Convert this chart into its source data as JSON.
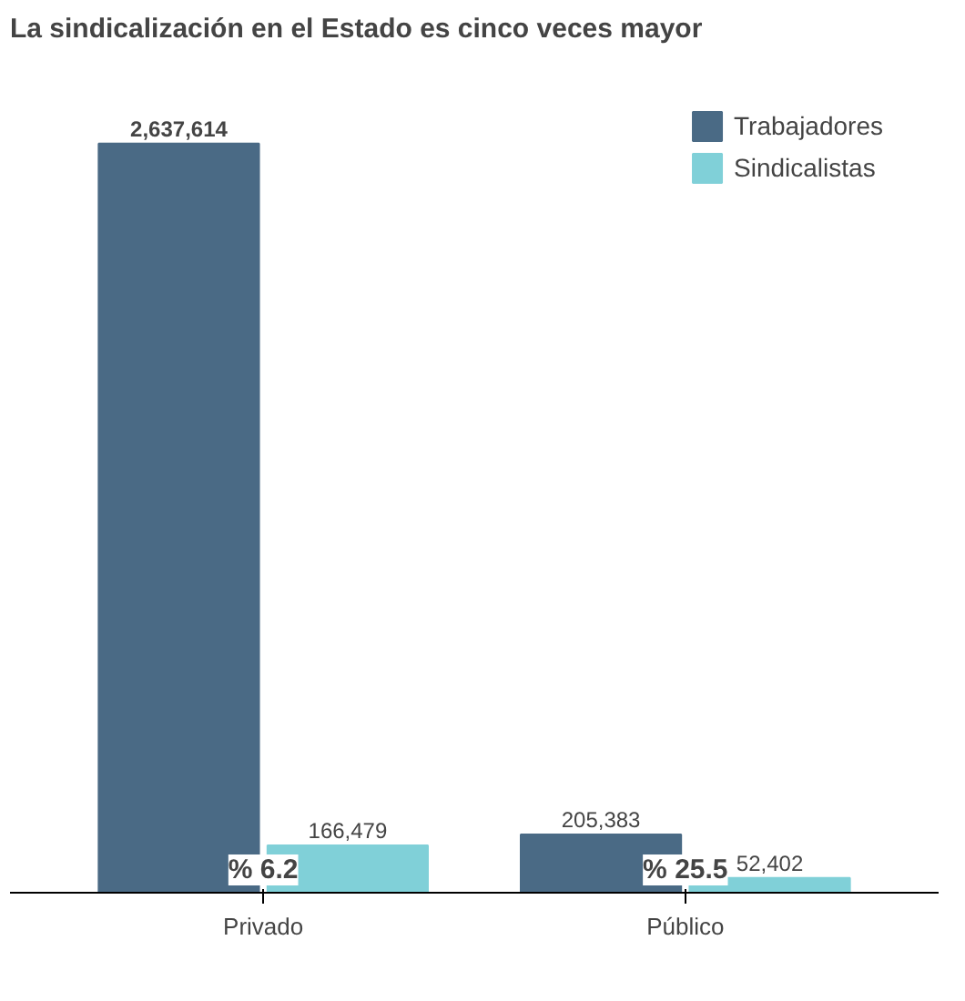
{
  "chart_data": {
    "type": "bar",
    "title": "La sindicalización en el Estado es cinco veces mayor",
    "categories": [
      "Privado",
      "Público"
    ],
    "series": [
      {
        "name": "Trabajadores",
        "color": "#4a6a85",
        "values": [
          2637614,
          205383
        ],
        "value_labels": [
          "2,637,614",
          "205,383"
        ]
      },
      {
        "name": "Sindicalistas",
        "color": "#80d0d8",
        "values": [
          166479,
          52402
        ],
        "value_labels": [
          "166,479",
          "52,402"
        ]
      }
    ],
    "legend": "top right",
    "grid": false,
    "annotations": [
      "% 6.2",
      "% 25.5"
    ]
  }
}
